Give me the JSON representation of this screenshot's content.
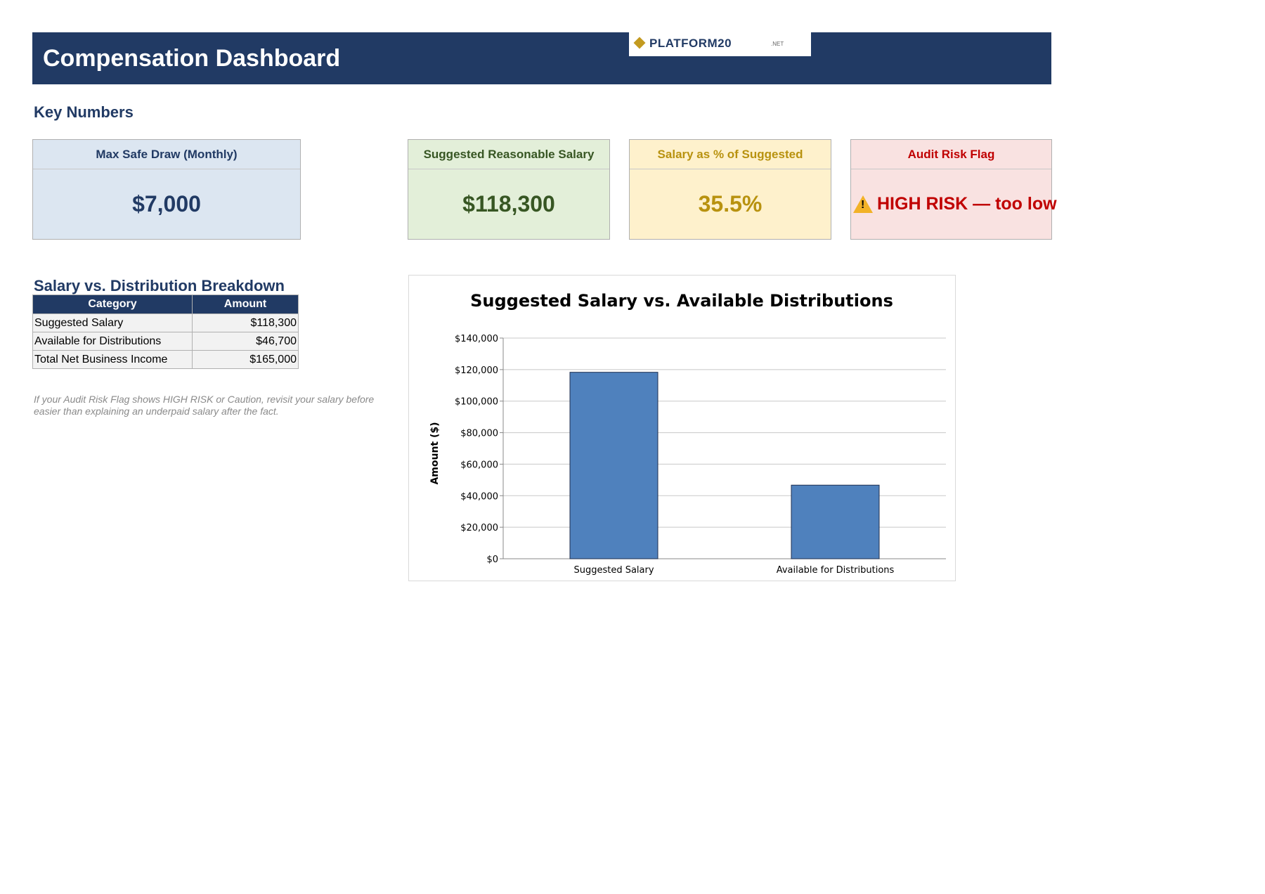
{
  "header": {
    "title": "Compensation Dashboard",
    "logo_text": "PLATFORM20",
    "logo_suffix": ".NET"
  },
  "key_numbers": {
    "title": "Key Numbers",
    "cards": [
      {
        "label": "Max Safe Draw (Monthly)",
        "value": "$7,000"
      },
      {
        "label": "Suggested Reasonable Salary",
        "value": "$118,300"
      },
      {
        "label": "Salary as % of Suggested",
        "value": "35.5%"
      },
      {
        "label": "Audit Risk Flag",
        "value": "HIGH RISK — too low"
      }
    ]
  },
  "breakdown": {
    "title": "Salary vs. Distribution Breakdown",
    "headers": [
      "Category",
      "Amount"
    ],
    "rows": [
      [
        "Suggested Salary",
        "$118,300"
      ],
      [
        "Available for Distributions",
        "$46,700"
      ],
      [
        "Total Net Business Income",
        "$165,000"
      ]
    ]
  },
  "note": {
    "line1": "If your Audit Risk Flag shows HIGH RISK or Caution, revisit your salary before",
    "line2": "easier than explaining an underpaid salary after the fact."
  },
  "colors": {
    "navy": "#213a64",
    "bar": "#4f81bd",
    "risk_red": "#c00000",
    "gold": "#c39a1f"
  },
  "chart_data": {
    "type": "bar",
    "title": "Suggested Salary vs. Available Distributions",
    "xlabel": "",
    "ylabel": "Amount ($)",
    "categories": [
      "Suggested Salary",
      "Available for Distributions"
    ],
    "values": [
      118300,
      46700
    ],
    "ylim": [
      0,
      140000
    ],
    "yticks": [
      0,
      20000,
      40000,
      60000,
      80000,
      100000,
      120000,
      140000
    ],
    "ytick_labels": [
      "$0",
      "$20,000",
      "$40,000",
      "$60,000",
      "$80,000",
      "$100,000",
      "$120,000",
      "$140,000"
    ],
    "grid": true,
    "legend": "none"
  }
}
